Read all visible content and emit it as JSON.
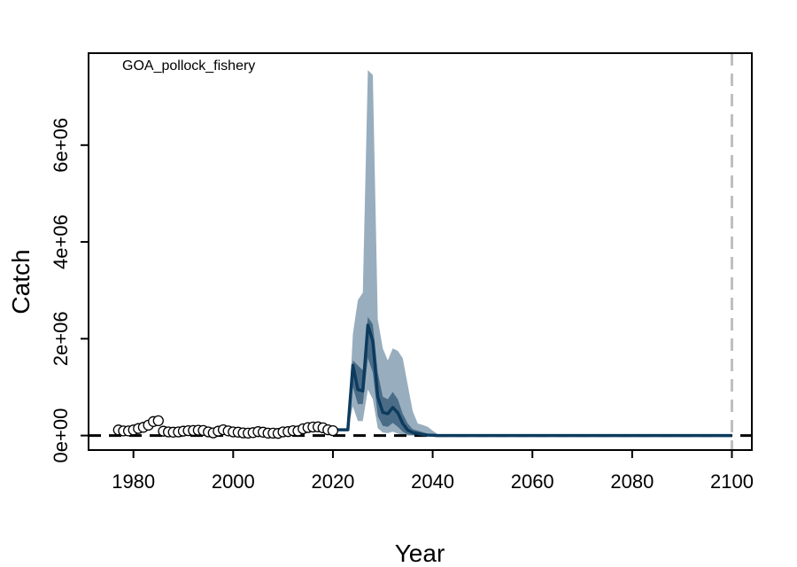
{
  "chart_data": {
    "type": "line",
    "title": "",
    "panel_label": "GOA_pollock_fishery",
    "xlabel": "Year",
    "ylabel": "Catch",
    "xlim": [
      1971,
      2104
    ],
    "ylim": [
      -300000,
      7900000
    ],
    "x_ticks": [
      1980,
      2000,
      2020,
      2040,
      2060,
      2080,
      2100
    ],
    "x_tick_labels": [
      "1980",
      "2000",
      "2020",
      "2040",
      "2060",
      "2080",
      "2100"
    ],
    "y_ticks": [
      0,
      2000000,
      4000000,
      6000000
    ],
    "y_tick_labels": [
      "0e+00",
      "2e+06",
      "4e+06",
      "6e+06"
    ],
    "grid": false,
    "colors": {
      "median_line": "#0d3b5e",
      "inner_band": "#4b6c87",
      "outer_band": "#98aebf",
      "observed_fill": "#ffffff",
      "observed_stroke": "#000000",
      "reference_line": "#000000",
      "end_year_line": "#bfbfbf"
    },
    "series": [
      {
        "kind": "observed_points",
        "x": [
          1977,
          1978,
          1979,
          1980,
          1981,
          1982,
          1983,
          1984,
          1985,
          1986,
          1987,
          1988,
          1989,
          1990,
          1991,
          1992,
          1993,
          1994,
          1995,
          1996,
          1997,
          1998,
          1999,
          2000,
          2001,
          2002,
          2003,
          2004,
          2005,
          2006,
          2007,
          2008,
          2009,
          2010,
          2011,
          2012,
          2013,
          2014,
          2015,
          2016,
          2017,
          2018,
          2019,
          2020
        ],
        "y": [
          115000,
          95000,
          95000,
          115000,
          145000,
          170000,
          215000,
          290000,
          305000,
          90000,
          75000,
          70000,
          75000,
          90000,
          100000,
          105000,
          110000,
          105000,
          75000,
          55000,
          90000,
          120000,
          95000,
          75000,
          70000,
          55000,
          50000,
          60000,
          80000,
          70000,
          50000,
          50000,
          45000,
          75000,
          80000,
          100000,
          95000,
          140000,
          165000,
          175000,
          180000,
          160000,
          120000,
          100000
        ]
      },
      {
        "kind": "median",
        "x": [
          2020,
          2021,
          2022,
          2023,
          2024,
          2025,
          2026,
          2027,
          2028,
          2029,
          2030,
          2031,
          2032,
          2033,
          2034,
          2035,
          2036,
          2037,
          2038,
          2039,
          2040,
          2041,
          2042,
          2043,
          2045,
          2050,
          2060,
          2070,
          2080,
          2090,
          2100
        ],
        "y": [
          120000,
          120000,
          120000,
          120000,
          1450000,
          950000,
          920000,
          2280000,
          1950000,
          800000,
          480000,
          450000,
          580000,
          470000,
          250000,
          110000,
          60000,
          40000,
          20000,
          10000,
          5000,
          0,
          0,
          0,
          0,
          0,
          0,
          0,
          0,
          0,
          0
        ]
      },
      {
        "kind": "inner_band",
        "x": [
          2023,
          2024,
          2025,
          2026,
          2027,
          2028,
          2029,
          2030,
          2031,
          2032,
          2033,
          2034,
          2035,
          2036,
          2037,
          2038,
          2039,
          2040,
          2041,
          2042
        ],
        "lower": [
          120000,
          1000000,
          650000,
          650000,
          1600000,
          1300000,
          400000,
          200000,
          180000,
          260000,
          180000,
          80000,
          20000,
          10000,
          0,
          0,
          0,
          0,
          0,
          0
        ],
        "upper": [
          120000,
          1550000,
          1450000,
          1350000,
          2450000,
          2300000,
          1300000,
          800000,
          750000,
          900000,
          750000,
          450000,
          250000,
          130000,
          100000,
          70000,
          40000,
          15000,
          5000,
          0
        ]
      },
      {
        "kind": "outer_band",
        "x": [
          2023,
          2024,
          2025,
          2026,
          2027,
          2028,
          2029,
          2030,
          2031,
          2032,
          2033,
          2034,
          2035,
          2036,
          2037,
          2038,
          2039,
          2040,
          2041,
          2042
        ],
        "lower": [
          120000,
          600000,
          300000,
          300000,
          950000,
          750000,
          150000,
          60000,
          50000,
          80000,
          40000,
          15000,
          0,
          0,
          0,
          0,
          0,
          0,
          0,
          0
        ],
        "upper": [
          120000,
          2100000,
          2800000,
          2950000,
          7550000,
          7450000,
          2400000,
          1800000,
          1550000,
          1800000,
          1750000,
          1600000,
          1050000,
          500000,
          250000,
          220000,
          180000,
          100000,
          30000,
          0
        ]
      }
    ],
    "reference_line_y": 0,
    "end_year_x": 2100
  }
}
